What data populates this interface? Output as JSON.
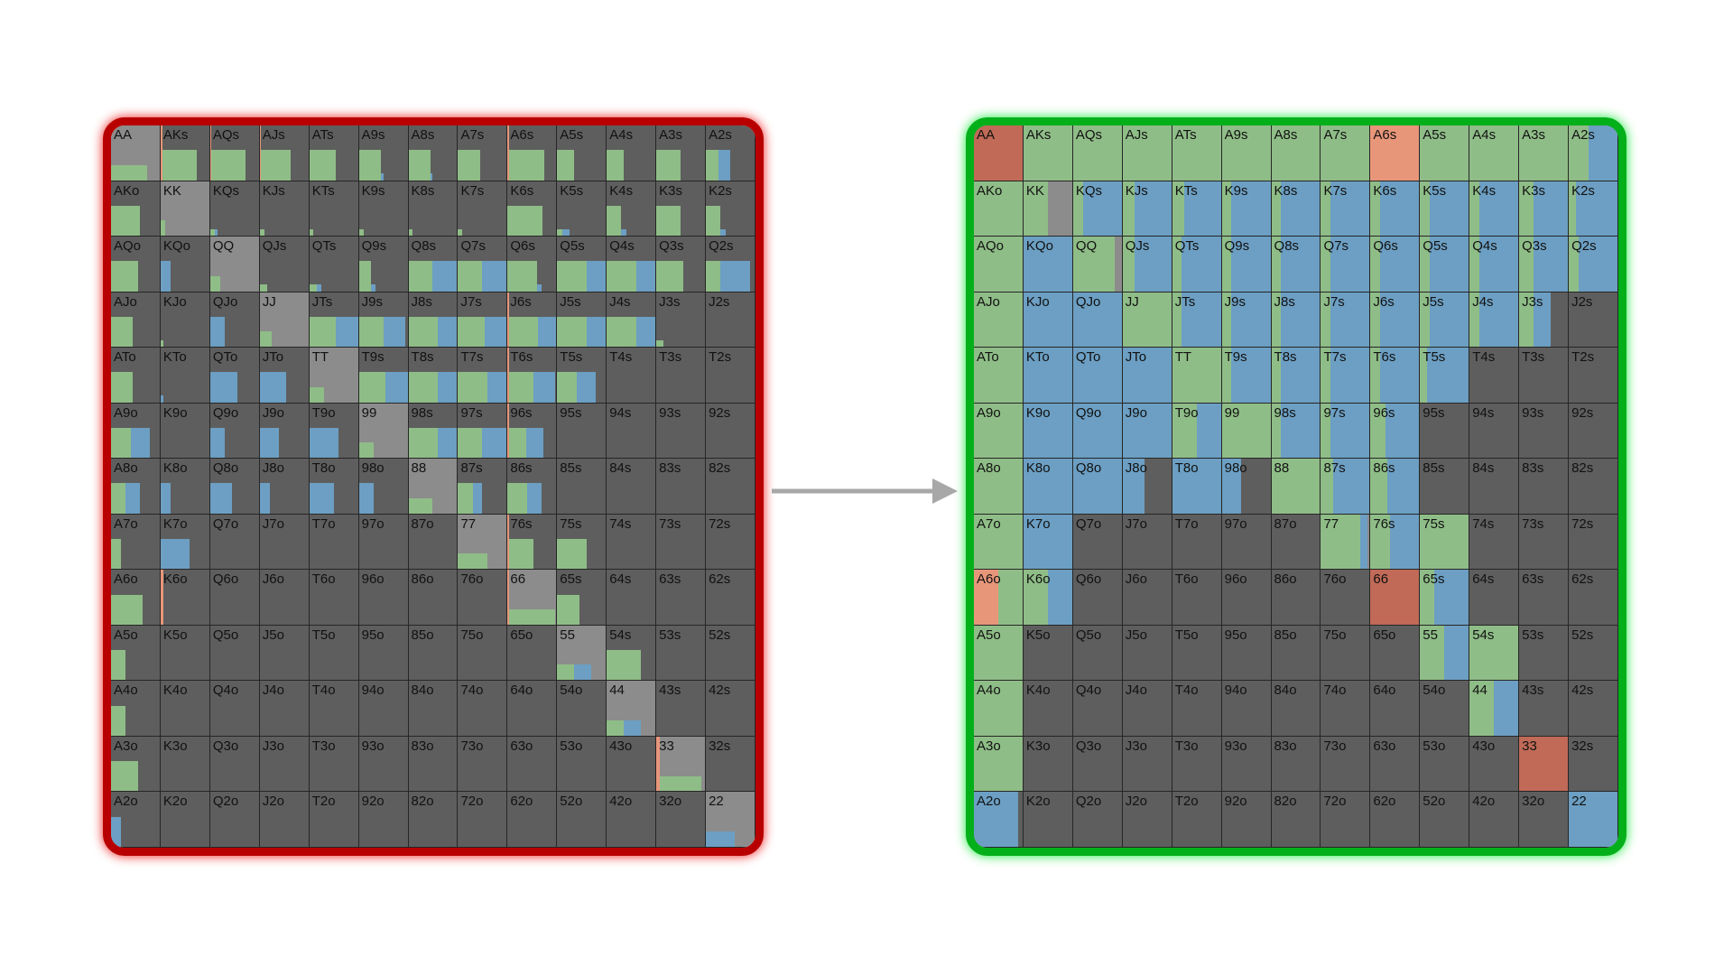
{
  "ranks": [
    "A",
    "K",
    "Q",
    "J",
    "T",
    "9",
    "8",
    "7",
    "6",
    "5",
    "4",
    "3",
    "2"
  ],
  "colors": {
    "fold": "#5e5e5e",
    "pair": "#8c8c8c",
    "call": "#8fbd87",
    "raise": "#6c9fc3",
    "allin": "#e8967a",
    "allin_dark": "#c06a57",
    "border_before": "#b80000",
    "border_after": "#04b01a",
    "arrow": "#a8a8a8"
  },
  "before": {
    "AA": [
      [
        "c",
        0.75
      ]
    ],
    "AKs": [
      [
        "a",
        0.03
      ],
      [
        "c",
        0.72
      ]
    ],
    "AQs": [
      [
        "a",
        0.03
      ],
      [
        "c",
        0.7
      ]
    ],
    "AJs": [
      [
        "a",
        0.03
      ],
      [
        "c",
        0.6
      ]
    ],
    "ATs": [
      [
        "c",
        0.55
      ]
    ],
    "A9s": [
      [
        "c",
        0.45
      ],
      [
        "r",
        0.05
      ]
    ],
    "A8s": [
      [
        "c",
        0.45
      ],
      [
        "r",
        0.05
      ]
    ],
    "A7s": [
      [
        "c",
        0.45
      ]
    ],
    "A6s": [
      [
        "a",
        0.03
      ],
      [
        "c",
        0.72
      ]
    ],
    "A5s": [
      [
        "c",
        0.35
      ]
    ],
    "A4s": [
      [
        "c",
        0.35
      ]
    ],
    "A3s": [
      [
        "c",
        0.5
      ]
    ],
    "A2s": [
      [
        "c",
        0.25
      ],
      [
        "r",
        0.25
      ]
    ],
    "AKo": [
      [
        "c",
        0.6
      ]
    ],
    "KK": [
      [
        "c",
        0.1
      ]
    ],
    "KQs": [
      [
        "c",
        0.1
      ],
      [
        "r",
        0.05
      ]
    ],
    "KJs": [
      [
        "c",
        0.1
      ]
    ],
    "KTs": [
      [
        "c",
        0.08
      ]
    ],
    "K9s": [
      [
        "c",
        0.1
      ]
    ],
    "K8s": [
      [
        "c",
        0.08
      ]
    ],
    "K7s": [
      [
        "c",
        0.08
      ]
    ],
    "K6s": [
      [
        "c",
        0.72
      ]
    ],
    "K5s": [
      [
        "c",
        0.1
      ],
      [
        "r",
        0.15
      ]
    ],
    "K4s": [
      [
        "c",
        0.3
      ],
      [
        "r",
        0.1
      ]
    ],
    "K3s": [
      [
        "c",
        0.5
      ]
    ],
    "K2s": [
      [
        "c",
        0.3
      ],
      [
        "r",
        0.1
      ]
    ],
    "AQo": [
      [
        "c",
        0.55
      ]
    ],
    "KQo": [
      [
        "r",
        0.2
      ]
    ],
    "QQ": [
      [
        "c",
        0.2
      ]
    ],
    "QJs": [
      [
        "c",
        0.15
      ]
    ],
    "QTs": [
      [
        "c",
        0.15
      ],
      [
        "r",
        0.1
      ]
    ],
    "Q9s": [
      [
        "c",
        0.25
      ],
      [
        "r",
        0.1
      ]
    ],
    "Q8s": [
      [
        "c",
        0.5
      ],
      [
        "r",
        0.5
      ]
    ],
    "Q7s": [
      [
        "c",
        0.5
      ],
      [
        "r",
        0.5
      ]
    ],
    "Q6s": [
      [
        "c",
        0.6
      ],
      [
        "r",
        0.1
      ]
    ],
    "Q5s": [
      [
        "c",
        0.6
      ],
      [
        "r",
        0.6
      ]
    ],
    "Q4s": [
      [
        "c",
        0.6
      ],
      [
        "r",
        0.6
      ]
    ],
    "Q3s": [
      [
        "c",
        0.55
      ]
    ],
    "Q2s": [
      [
        "c",
        0.3
      ],
      [
        "r",
        0.6
      ]
    ],
    "AJo": [
      [
        "c",
        0.45
      ]
    ],
    "KJo": [
      [
        "c",
        0.05
      ]
    ],
    "QJo": [
      [
        "r",
        0.3
      ]
    ],
    "JJ": [
      [
        "c",
        0.25
      ]
    ],
    "JTs": [
      [
        "c",
        0.55
      ],
      [
        "r",
        0.5
      ]
    ],
    "J9s": [
      [
        "c",
        0.5
      ],
      [
        "r",
        0.45
      ]
    ],
    "J8s": [
      [
        "c",
        0.6
      ],
      [
        "r",
        0.6
      ]
    ],
    "J7s": [
      [
        "c",
        0.55
      ],
      [
        "r",
        0.55
      ]
    ],
    "J6s": [
      [
        "a",
        0.03
      ],
      [
        "c",
        0.6
      ],
      [
        "r",
        0.6
      ]
    ],
    "J5s": [
      [
        "c",
        0.6
      ],
      [
        "r",
        0.6
      ]
    ],
    "J4s": [
      [
        "c",
        0.6
      ],
      [
        "r",
        0.6
      ]
    ],
    "J3s": [
      [
        "c",
        0.15
      ]
    ],
    "J2s": [],
    "ATo": [
      [
        "c",
        0.45
      ]
    ],
    "KTo": [
      [
        "r",
        0.05
      ]
    ],
    "QTo": [
      [
        "r",
        0.55
      ]
    ],
    "JTo": [
      [
        "r",
        0.55
      ]
    ],
    "TT": [
      [
        "c",
        0.3
      ]
    ],
    "T9s": [
      [
        "c",
        0.55
      ],
      [
        "r",
        0.5
      ]
    ],
    "T8s": [
      [
        "c",
        0.6
      ],
      [
        "r",
        0.6
      ]
    ],
    "T7s": [
      [
        "c",
        0.6
      ],
      [
        "r",
        0.6
      ]
    ],
    "T6s": [
      [
        "a",
        0.03
      ],
      [
        "c",
        0.5
      ],
      [
        "r",
        0.45
      ]
    ],
    "T5s": [
      [
        "c",
        0.4
      ],
      [
        "r",
        0.4
      ]
    ],
    "T4s": [],
    "T3s": [],
    "T2s": [],
    "A9o": [
      [
        "c",
        0.4
      ],
      [
        "r",
        0.4
      ]
    ],
    "K9o": [],
    "Q9o": [
      [
        "r",
        0.3
      ]
    ],
    "J9o": [
      [
        "r",
        0.4
      ]
    ],
    "T9o": [
      [
        "r",
        0.6
      ]
    ],
    "99": [
      [
        "c",
        0.3
      ]
    ],
    "98s": [
      [
        "c",
        0.6
      ],
      [
        "r",
        0.6
      ]
    ],
    "97s": [
      [
        "c",
        0.5
      ],
      [
        "r",
        0.5
      ]
    ],
    "96s": [
      [
        "a",
        0.03
      ],
      [
        "c",
        0.35
      ],
      [
        "r",
        0.35
      ]
    ],
    "95s": [],
    "94s": [],
    "93s": [],
    "92s": [],
    "A8o": [
      [
        "c",
        0.3
      ],
      [
        "r",
        0.3
      ]
    ],
    "K8o": [
      [
        "r",
        0.2
      ]
    ],
    "Q8o": [
      [
        "r",
        0.45
      ]
    ],
    "J8o": [
      [
        "r",
        0.2
      ]
    ],
    "T8o": [
      [
        "r",
        0.5
      ]
    ],
    "98o": [
      [
        "r",
        0.3
      ]
    ],
    "88": [
      [
        "c",
        0.5
      ]
    ],
    "87s": [
      [
        "c",
        0.3
      ],
      [
        "r",
        0.2
      ]
    ],
    "86s": [
      [
        "c",
        0.4
      ],
      [
        "r",
        0.3
      ]
    ],
    "85s": [],
    "84s": [],
    "83s": [],
    "82s": [],
    "A7o": [
      [
        "c",
        0.2
      ]
    ],
    "K7o": [
      [
        "r",
        0.6
      ]
    ],
    "Q7o": [],
    "J7o": [],
    "T7o": [],
    "97o": [],
    "87o": [],
    "77": [
      [
        "c",
        0.6
      ]
    ],
    "76s": [
      [
        "a",
        0.03
      ],
      [
        "c",
        0.5
      ]
    ],
    "75s": [
      [
        "c",
        0.6
      ]
    ],
    "74s": [],
    "73s": [],
    "72s": [],
    "A6o": [
      [
        "c",
        0.65
      ]
    ],
    "K6o": [
      [
        "a",
        0.05
      ]
    ],
    "Q6o": [],
    "J6o": [],
    "T6o": [],
    "96o": [],
    "86o": [],
    "76o": [],
    "66": [
      [
        "a",
        0.03
      ],
      [
        "c",
        0.95
      ]
    ],
    "65s": [
      [
        "c",
        0.45
      ]
    ],
    "64s": [],
    "63s": [],
    "62s": [],
    "A5o": [
      [
        "c",
        0.3
      ]
    ],
    "K5o": [],
    "Q5o": [],
    "J5o": [],
    "T5o": [],
    "95o": [],
    "85o": [],
    "75o": [],
    "65o": [],
    "55": [
      [
        "c",
        0.35
      ],
      [
        "r",
        0.35
      ]
    ],
    "54s": [
      [
        "c",
        0.7
      ]
    ],
    "53s": [],
    "52s": [],
    "A4o": [
      [
        "c",
        0.3
      ]
    ],
    "K4o": [],
    "Q4o": [],
    "J4o": [],
    "T4o": [],
    "94o": [],
    "84o": [],
    "74o": [],
    "64o": [],
    "54o": [],
    "44": [
      [
        "c",
        0.35
      ],
      [
        "r",
        0.35
      ]
    ],
    "43s": [],
    "42s": [],
    "A3o": [
      [
        "c",
        0.55
      ]
    ],
    "K3o": [],
    "Q3o": [],
    "J3o": [],
    "T3o": [],
    "93o": [],
    "83o": [],
    "73o": [],
    "63o": [],
    "53o": [],
    "43o": [],
    "33": [
      [
        "a",
        0.08
      ],
      [
        "c",
        0.85
      ]
    ],
    "32s": [],
    "A2o": [
      [
        "r",
        0.2
      ]
    ],
    "K2o": [],
    "Q2o": [],
    "J2o": [],
    "T2o": [],
    "92o": [],
    "82o": [],
    "72o": [],
    "62o": [],
    "52o": [],
    "42o": [],
    "32o": [],
    "22": [
      [
        "r",
        0.6
      ]
    ]
  },
  "after": {
    "AA": [
      [
        "d",
        1
      ]
    ],
    "AKs": [
      [
        "c",
        1
      ]
    ],
    "AQs": [
      [
        "c",
        1
      ]
    ],
    "AJs": [
      [
        "c",
        1
      ]
    ],
    "ATs": [
      [
        "c",
        1
      ]
    ],
    "A9s": [
      [
        "c",
        1
      ]
    ],
    "A8s": [
      [
        "c",
        1
      ]
    ],
    "A7s": [
      [
        "c",
        1
      ]
    ],
    "A6s": [
      [
        "a",
        1
      ]
    ],
    "A5s": [
      [
        "c",
        1
      ]
    ],
    "A4s": [
      [
        "c",
        1
      ]
    ],
    "A3s": [
      [
        "c",
        1
      ]
    ],
    "A2s": [
      [
        "c",
        0.4
      ],
      [
        "r",
        0.6
      ]
    ],
    "AKo": [
      [
        "c",
        1
      ]
    ],
    "KK": [
      [
        "c",
        0.5
      ]
    ],
    "KQs": [
      [
        "c",
        0.2
      ],
      [
        "r",
        0.8
      ]
    ],
    "KJs": [
      [
        "c",
        0.25
      ],
      [
        "r",
        0.75
      ]
    ],
    "KTs": [
      [
        "c",
        0.25
      ],
      [
        "r",
        0.75
      ]
    ],
    "K9s": [
      [
        "c",
        0.2
      ],
      [
        "r",
        0.8
      ]
    ],
    "K8s": [
      [
        "c",
        0.2
      ],
      [
        "r",
        0.8
      ]
    ],
    "K7s": [
      [
        "c",
        0.2
      ],
      [
        "r",
        0.8
      ]
    ],
    "K6s": [
      [
        "c",
        0.2
      ],
      [
        "r",
        0.8
      ]
    ],
    "K5s": [
      [
        "c",
        0.2
      ],
      [
        "r",
        0.8
      ]
    ],
    "K4s": [
      [
        "c",
        0.2
      ],
      [
        "r",
        0.8
      ]
    ],
    "K3s": [
      [
        "c",
        0.3
      ],
      [
        "r",
        0.7
      ]
    ],
    "K2s": [
      [
        "c",
        0.15
      ],
      [
        "r",
        0.85
      ]
    ],
    "AQo": [
      [
        "c",
        1
      ]
    ],
    "KQo": [
      [
        "r",
        1
      ]
    ],
    "QQ": [
      [
        "c",
        0.85
      ]
    ],
    "QJs": [
      [
        "c",
        0.25
      ],
      [
        "r",
        0.75
      ]
    ],
    "QTs": [
      [
        "c",
        0.2
      ],
      [
        "r",
        0.8
      ]
    ],
    "Q9s": [
      [
        "c",
        0.2
      ],
      [
        "r",
        0.8
      ]
    ],
    "Q8s": [
      [
        "c",
        0.2
      ],
      [
        "r",
        0.8
      ]
    ],
    "Q7s": [
      [
        "c",
        0.2
      ],
      [
        "r",
        0.8
      ]
    ],
    "Q6s": [
      [
        "c",
        0.2
      ],
      [
        "r",
        0.8
      ]
    ],
    "Q5s": [
      [
        "c",
        0.2
      ],
      [
        "r",
        0.8
      ]
    ],
    "Q4s": [
      [
        "c",
        0.2
      ],
      [
        "r",
        0.8
      ]
    ],
    "Q3s": [
      [
        "c",
        0.3
      ],
      [
        "r",
        0.7
      ]
    ],
    "Q2s": [
      [
        "c",
        0.2
      ],
      [
        "r",
        0.8
      ]
    ],
    "AJo": [
      [
        "c",
        1
      ]
    ],
    "KJo": [
      [
        "r",
        1
      ]
    ],
    "QJo": [
      [
        "r",
        1
      ]
    ],
    "JJ": [
      [
        "c",
        1
      ]
    ],
    "JTs": [
      [
        "c",
        0.2
      ],
      [
        "r",
        0.8
      ]
    ],
    "J9s": [
      [
        "c",
        0.2
      ],
      [
        "r",
        0.8
      ]
    ],
    "J8s": [
      [
        "c",
        0.2
      ],
      [
        "r",
        0.8
      ]
    ],
    "J7s": [
      [
        "c",
        0.2
      ],
      [
        "r",
        0.8
      ]
    ],
    "J6s": [
      [
        "c",
        0.2
      ],
      [
        "r",
        0.8
      ]
    ],
    "J5s": [
      [
        "c",
        0.2
      ],
      [
        "r",
        0.8
      ]
    ],
    "J4s": [
      [
        "c",
        0.2
      ],
      [
        "r",
        0.8
      ]
    ],
    "J3s": [
      [
        "c",
        0.3
      ],
      [
        "r",
        0.35
      ]
    ],
    "J2s": [],
    "ATo": [
      [
        "c",
        1
      ]
    ],
    "KTo": [
      [
        "r",
        1
      ]
    ],
    "QTo": [
      [
        "r",
        1
      ]
    ],
    "JTo": [
      [
        "r",
        1
      ]
    ],
    "TT": [
      [
        "c",
        1
      ]
    ],
    "T9s": [
      [
        "c",
        0.2
      ],
      [
        "r",
        0.8
      ]
    ],
    "T8s": [
      [
        "c",
        0.2
      ],
      [
        "r",
        0.8
      ]
    ],
    "T7s": [
      [
        "c",
        0.2
      ],
      [
        "r",
        0.8
      ]
    ],
    "T6s": [
      [
        "c",
        0.2
      ],
      [
        "r",
        0.8
      ]
    ],
    "T5s": [
      [
        "c",
        0.15
      ],
      [
        "r",
        0.9
      ]
    ],
    "T4s": [],
    "T3s": [],
    "T2s": [],
    "A9o": [
      [
        "c",
        1
      ]
    ],
    "K9o": [
      [
        "r",
        1
      ]
    ],
    "Q9o": [
      [
        "r",
        1
      ]
    ],
    "J9o": [
      [
        "r",
        1
      ]
    ],
    "T9o": [
      [
        "c",
        0.5
      ],
      [
        "r",
        1
      ]
    ],
    "99": [
      [
        "c",
        1
      ]
    ],
    "98s": [
      [
        "c",
        0.2
      ],
      [
        "r",
        0.8
      ]
    ],
    "97s": [
      [
        "c",
        0.2
      ],
      [
        "r",
        0.8
      ]
    ],
    "96s": [
      [
        "c",
        0.3
      ],
      [
        "r",
        0.8
      ]
    ],
    "95s": [],
    "94s": [],
    "93s": [],
    "92s": [],
    "A8o": [
      [
        "c",
        1
      ]
    ],
    "K8o": [
      [
        "r",
        1
      ]
    ],
    "Q8o": [
      [
        "r",
        1
      ]
    ],
    "J8o": [
      [
        "r",
        0.45
      ]
    ],
    "T8o": [
      [
        "r",
        1
      ]
    ],
    "98o": [
      [
        "r",
        0.4
      ]
    ],
    "88": [
      [
        "c",
        1
      ]
    ],
    "87s": [
      [
        "c",
        0.25
      ],
      [
        "r",
        0.75
      ]
    ],
    "86s": [
      [
        "c",
        0.35
      ],
      [
        "r",
        0.65
      ]
    ],
    "85s": [],
    "84s": [],
    "83s": [],
    "82s": [],
    "A7o": [
      [
        "c",
        1
      ]
    ],
    "K7o": [
      [
        "r",
        1
      ]
    ],
    "Q7o": [],
    "J7o": [],
    "T7o": [],
    "97o": [],
    "87o": [],
    "77": [
      [
        "c",
        0.8
      ],
      [
        "r",
        0.15
      ]
    ],
    "76s": [
      [
        "c",
        0.4
      ],
      [
        "r",
        0.6
      ]
    ],
    "75s": [
      [
        "c",
        1
      ]
    ],
    "74s": [],
    "73s": [],
    "72s": [],
    "A6o": [
      [
        "a",
        0.5
      ],
      [
        "c",
        0.5
      ]
    ],
    "K6o": [
      [
        "c",
        0.5
      ],
      [
        "r",
        0.5
      ]
    ],
    "Q6o": [],
    "J6o": [],
    "T6o": [],
    "96o": [],
    "86o": [],
    "76o": [],
    "66": [
      [
        "d",
        1
      ]
    ],
    "65s": [
      [
        "c",
        0.3
      ],
      [
        "r",
        0.7
      ]
    ],
    "64s": [],
    "63s": [],
    "62s": [],
    "A5o": [
      [
        "c",
        1
      ]
    ],
    "K5o": [],
    "Q5o": [],
    "J5o": [],
    "T5o": [],
    "95o": [],
    "85o": [],
    "75o": [],
    "65o": [],
    "55": [
      [
        "c",
        0.5
      ],
      [
        "r",
        0.5
      ]
    ],
    "54s": [
      [
        "c",
        1
      ]
    ],
    "53s": [],
    "52s": [],
    "A4o": [
      [
        "c",
        1
      ]
    ],
    "K4o": [],
    "Q4o": [],
    "J4o": [],
    "T4o": [],
    "94o": [],
    "84o": [],
    "74o": [],
    "64o": [],
    "54o": [],
    "44": [
      [
        "c",
        0.5
      ],
      [
        "r",
        0.5
      ]
    ],
    "43s": [],
    "42s": [],
    "A3o": [
      [
        "c",
        1
      ]
    ],
    "K3o": [],
    "Q3o": [],
    "J3o": [],
    "T3o": [],
    "93o": [],
    "83o": [],
    "73o": [],
    "63o": [],
    "53o": [],
    "43o": [],
    "33": [
      [
        "d",
        1
      ]
    ],
    "32s": [],
    "A2o": [
      [
        "r",
        0.9
      ]
    ],
    "K2o": [],
    "Q2o": [],
    "J2o": [],
    "T2o": [],
    "92o": [],
    "82o": [],
    "72o": [],
    "62o": [],
    "52o": [],
    "42o": [],
    "32o": [],
    "22": [
      [
        "r",
        1
      ]
    ]
  }
}
